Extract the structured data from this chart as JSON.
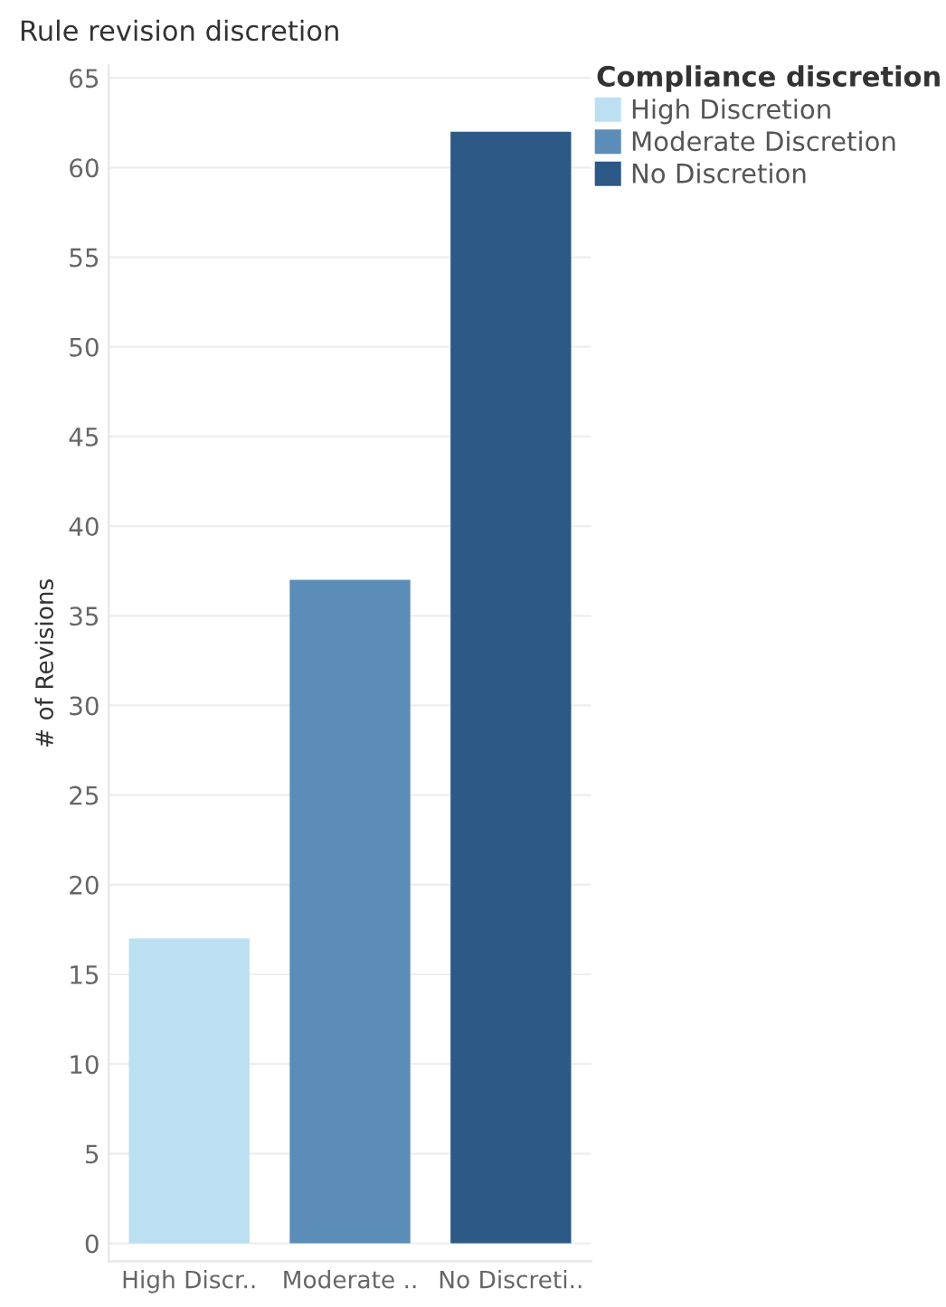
{
  "chart_data": {
    "type": "bar",
    "title": "Rule revision discretion",
    "ylabel": "# of Revisions",
    "legend_title": "Compliance discretion",
    "categories": [
      "High Discr..",
      "Moderate ..",
      "No Discreti.."
    ],
    "stacked": true,
    "series": [
      {
        "name": "High Discretion",
        "color": "#bce0f2",
        "values": [
          17,
          null,
          null
        ]
      },
      {
        "name": "Moderate Discretion",
        "color": "#5b8db8",
        "values": [
          null,
          37,
          null
        ]
      },
      {
        "name": "No Discretion",
        "color": "#2c5985",
        "values": [
          null,
          null,
          62
        ]
      }
    ],
    "ylim": [
      -1,
      65.7
    ],
    "yticks": [
      0,
      5,
      10,
      15,
      20,
      25,
      30,
      35,
      40,
      45,
      50,
      55,
      60,
      65
    ],
    "grid": "y",
    "legend": "top right"
  }
}
